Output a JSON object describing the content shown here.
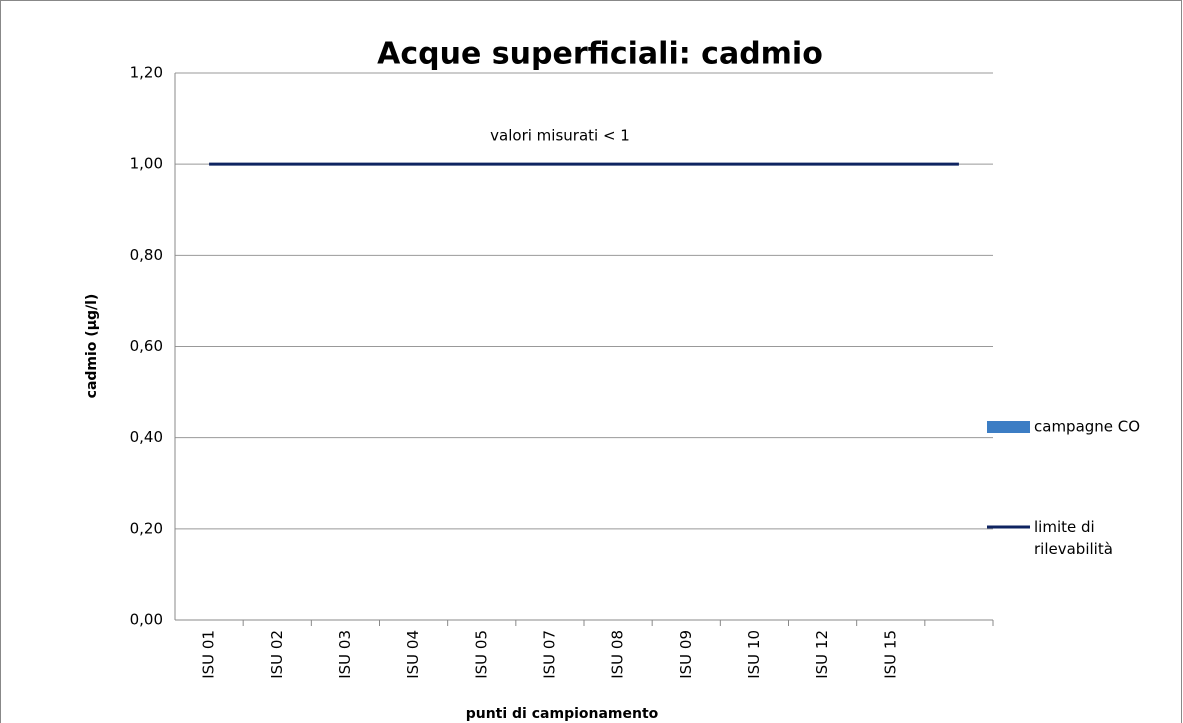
{
  "chart_data": {
    "type": "bar",
    "title": "Acque superficiali: cadmio",
    "annotation": "valori misurati < 1",
    "y_label": "cadmio (µg/l)",
    "x_label": "punti di campionamento",
    "categories": [
      "ISU 01",
      "ISU 02",
      "ISU 03",
      "ISU 04",
      "ISU 05",
      "ISU 07",
      "ISU 08",
      "ISU 09",
      "ISU 10",
      "ISU 12",
      "ISU 15",
      null
    ],
    "series": [
      {
        "name": "campagne CO",
        "type": "bar",
        "color": "#3c7dc4",
        "values": [
          null,
          null,
          null,
          null,
          null,
          null,
          null,
          null,
          null,
          null,
          null,
          null
        ]
      },
      {
        "name": "limite di rilevabilità",
        "type": "line",
        "color": "#0f2461",
        "values": [
          1,
          1,
          1,
          1,
          1,
          1,
          1,
          1,
          1,
          1,
          1,
          1
        ]
      }
    ],
    "ylim": [
      0,
      1.2
    ],
    "yticks": [
      {
        "value": 0,
        "label": "0,00"
      },
      {
        "value": 0.2,
        "label": "0,20"
      },
      {
        "value": 0.4,
        "label": "0,40"
      },
      {
        "value": 0.6,
        "label": "0,60"
      },
      {
        "value": 0.8,
        "label": "0,80"
      },
      {
        "value": 1,
        "label": "1,00"
      },
      {
        "value": 1.2,
        "label": "1,20"
      }
    ],
    "grid": true,
    "legend": "right"
  }
}
